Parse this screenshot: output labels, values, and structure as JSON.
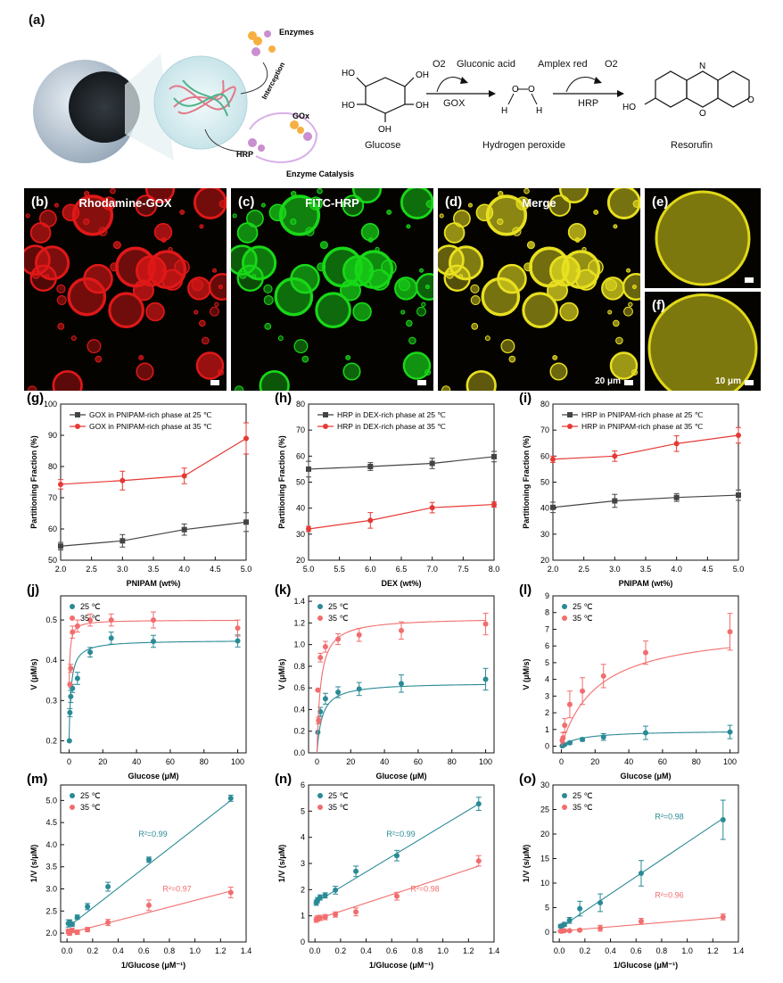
{
  "panel_a": {
    "letter": "(a)",
    "labels": {
      "enzymes": "Enzymes",
      "interception": "Interception",
      "gox": "GOx",
      "hrp": "HRP",
      "enzyme_catalysis": "Enzyme Catalysis"
    },
    "reaction": {
      "o2_1": "O2",
      "gluconic": "Gluconic acid",
      "gox": "GOX",
      "amplex": "Amplex red",
      "o2_2": "O2",
      "hrp": "HRP",
      "glucose": "Glucose",
      "h2o2": "Hydrogen peroxide",
      "resorufin": "Resorufin"
    }
  },
  "micrographs": [
    {
      "letter": "(b)",
      "label": "Rhodamine-GOX",
      "color": "#e01818",
      "scale": ""
    },
    {
      "letter": "(c)",
      "label": "FITC-HRP",
      "color": "#18d818",
      "scale": ""
    },
    {
      "letter": "(d)",
      "label": "Merge",
      "color": "#e8e020",
      "scale": "20 μm"
    },
    {
      "letter": "(e)",
      "label": "",
      "color": "#e0d818",
      "scale": ""
    },
    {
      "letter": "(f)",
      "label": "",
      "color": "#e0d818",
      "scale": "10 μm"
    }
  ],
  "chart_data": [
    {
      "id": "g",
      "type": "line",
      "letter": "(g)",
      "xlabel": "PNIPAM (wt%)",
      "ylabel": "Partitioning Fraction (%)",
      "xlim": [
        2.0,
        5.0
      ],
      "ylim": [
        50,
        100
      ],
      "xticks": [
        2.0,
        2.5,
        3.0,
        3.5,
        4.0,
        4.5,
        5.0
      ],
      "yticks": [
        50,
        60,
        70,
        80,
        90,
        100
      ],
      "xdec": 1,
      "ydec": 0,
      "series": [
        {
          "name": "GOX in PNIPAM-rich phase at 25 ℃",
          "color": "#444444",
          "marker": "square",
          "x": [
            2,
            3,
            4,
            5
          ],
          "y": [
            54.5,
            56.2,
            59.8,
            62.2
          ],
          "err": [
            1.2,
            2,
            1.8,
            3
          ]
        },
        {
          "name": "GOX in PNIPAM-rich phase at 35 ℃",
          "color": "#e53935",
          "marker": "circle",
          "x": [
            2,
            3,
            4,
            5
          ],
          "y": [
            74.3,
            75.5,
            77,
            89
          ],
          "err": [
            1.5,
            3,
            2.5,
            5
          ]
        }
      ]
    },
    {
      "id": "h",
      "type": "line",
      "letter": "(h)",
      "xlabel": "DEX (wt%)",
      "ylabel": "Partitioning Fraction (%)",
      "xlim": [
        5.0,
        8.0
      ],
      "ylim": [
        20,
        80
      ],
      "xticks": [
        5.0,
        5.5,
        6.0,
        6.5,
        7.0,
        7.5,
        8.0
      ],
      "yticks": [
        20,
        30,
        40,
        50,
        60,
        70,
        80
      ],
      "xdec": 1,
      "ydec": 0,
      "series": [
        {
          "name": "HRP in DEX-rich phase at 25 ℃",
          "color": "#444444",
          "marker": "square",
          "x": [
            5,
            6,
            7,
            8
          ],
          "y": [
            55,
            56,
            57.2,
            59.8
          ],
          "err": [
            3,
            1.5,
            2,
            2
          ]
        },
        {
          "name": "HRP in DEX-rich phase at 35 ℃",
          "color": "#e53935",
          "marker": "circle",
          "x": [
            5,
            6,
            7,
            8
          ],
          "y": [
            32,
            35.3,
            40.2,
            41.4
          ],
          "err": [
            1,
            3,
            2,
            1
          ]
        }
      ]
    },
    {
      "id": "i",
      "type": "line",
      "letter": "(i)",
      "xlabel": "PNIPAM (wt%)",
      "ylabel": "Partitioning Fraction (%)",
      "xlim": [
        2.0,
        5.0
      ],
      "ylim": [
        20,
        80
      ],
      "xticks": [
        2.0,
        2.5,
        3.0,
        3.5,
        4.0,
        4.5,
        5.0
      ],
      "yticks": [
        20,
        30,
        40,
        50,
        60,
        70,
        80
      ],
      "xdec": 1,
      "ydec": 0,
      "series": [
        {
          "name": "HRP in PNIPAM-rich phase at 25 ℃",
          "color": "#444444",
          "marker": "square",
          "x": [
            2,
            3,
            4,
            5
          ],
          "y": [
            40.3,
            42.8,
            44.1,
            45
          ],
          "err": [
            2,
            2.5,
            1.5,
            2
          ]
        },
        {
          "name": "HRP in PNIPAM-rich phase at 35 ℃",
          "color": "#e53935",
          "marker": "circle",
          "x": [
            2,
            3,
            4,
            5
          ],
          "y": [
            58.8,
            60,
            64.8,
            68
          ],
          "err": [
            1.2,
            2,
            3,
            3
          ]
        }
      ]
    },
    {
      "id": "j",
      "type": "scatter",
      "letter": "(j)",
      "xlabel": "Glucose (μM)",
      "ylabel": "V (μM/s)",
      "xlim": [
        -5,
        105
      ],
      "ylim": [
        0.17,
        0.56
      ],
      "xticks": [
        0,
        20,
        40,
        60,
        80,
        100
      ],
      "yticks": [
        0.2,
        0.3,
        0.4,
        0.5
      ],
      "xdec": 0,
      "ydec": 1,
      "fit": "mm",
      "series": [
        {
          "name": "25 ℃",
          "color": "#2a8a96",
          "x": [
            0.2,
            0.5,
            1,
            2,
            5,
            12.5,
            25,
            50,
            100
          ],
          "y": [
            0.2,
            0.27,
            0.31,
            0.33,
            0.355,
            0.42,
            0.455,
            0.447,
            0.448
          ],
          "err": [
            0,
            0.01,
            0.015,
            0.01,
            0.015,
            0.012,
            0.015,
            0.015,
            0.015
          ],
          "vmax": 0.45,
          "km": 1.15,
          "v0": 0.2
        },
        {
          "name": "35 ℃",
          "color": "#f26d6d",
          "x": [
            0.5,
            1,
            2,
            5,
            12.5,
            25,
            50,
            100
          ],
          "y": [
            0.34,
            0.38,
            0.47,
            0.485,
            0.5,
            0.5,
            0.5,
            0.48
          ],
          "err": [
            0,
            0.01,
            0.015,
            0.015,
            0.015,
            0.015,
            0.02,
            0.02
          ],
          "vmax": 0.5,
          "km": 0.6,
          "v0": 0.33
        }
      ]
    },
    {
      "id": "k",
      "type": "scatter",
      "letter": "(k)",
      "xlabel": "Glucose (μM)",
      "ylabel": "V (μM/s)",
      "xlim": [
        -5,
        105
      ],
      "ylim": [
        0,
        1.45
      ],
      "xticks": [
        0,
        20,
        40,
        60,
        80,
        100
      ],
      "yticks": [
        0.0,
        0.2,
        0.4,
        0.6,
        0.8,
        1.0,
        1.2,
        1.4
      ],
      "xdec": 0,
      "ydec": 1,
      "fit": "mm",
      "series": [
        {
          "name": "25 ℃",
          "color": "#2a8a96",
          "x": [
            0.5,
            1,
            2,
            5,
            12.5,
            25,
            50,
            100
          ],
          "y": [
            0.19,
            0.3,
            0.38,
            0.5,
            0.56,
            0.59,
            0.64,
            0.68
          ],
          "err": [
            0,
            0.03,
            0.04,
            0.05,
            0.05,
            0.06,
            0.08,
            0.1
          ],
          "vmax": 0.65,
          "km": 3,
          "v0": 0
        },
        {
          "name": "35 ℃",
          "color": "#f26d6d",
          "x": [
            0.5,
            1,
            2,
            5,
            12.5,
            25,
            50,
            100
          ],
          "y": [
            0.58,
            0.3,
            0.88,
            0.98,
            1.05,
            1.09,
            1.13,
            1.19
          ],
          "err": [
            0,
            0.03,
            0.04,
            0.05,
            0.05,
            0.06,
            0.08,
            0.1
          ],
          "vmax": 1.25,
          "km": 2.2,
          "v0": 0
        }
      ]
    },
    {
      "id": "l",
      "type": "scatter",
      "letter": "(l)",
      "xlabel": "Glucose (μM)",
      "ylabel": "V (μM/s)",
      "xlim": [
        -5,
        105
      ],
      "ylim": [
        -0.4,
        9
      ],
      "xticks": [
        0,
        20,
        40,
        60,
        80,
        100
      ],
      "yticks": [
        0,
        1,
        2,
        3,
        4,
        5,
        6,
        7,
        8,
        9
      ],
      "xdec": 0,
      "ydec": 0,
      "fit": "mm",
      "series": [
        {
          "name": "25 ℃",
          "color": "#2a8a96",
          "x": [
            0.5,
            1,
            2,
            5,
            12.5,
            25,
            50,
            100
          ],
          "y": [
            0.02,
            0.05,
            0.1,
            0.2,
            0.4,
            0.55,
            0.8,
            0.85
          ],
          "err": [
            0,
            0.05,
            0.05,
            0.08,
            0.1,
            0.2,
            0.4,
            0.4
          ],
          "vmax": 0.95,
          "km": 12,
          "v0": 0
        },
        {
          "name": "35 ℃",
          "color": "#f26d6d",
          "x": [
            0.5,
            1,
            2,
            5,
            12.5,
            25,
            50,
            100
          ],
          "y": [
            0.35,
            0.5,
            1.25,
            2.5,
            3.3,
            4.2,
            5.6,
            6.85
          ],
          "err": [
            0,
            0.3,
            0.4,
            0.8,
            0.8,
            0.7,
            0.7,
            1.1
          ],
          "vmax": 7.2,
          "km": 22,
          "v0": 0
        }
      ]
    },
    {
      "id": "m",
      "type": "scatter",
      "letter": "(m)",
      "xlabel": "1/Glucose (μM⁻¹)",
      "ylabel": "1/V (s/μM)",
      "xlim": [
        -0.05,
        1.4
      ],
      "ylim": [
        1.8,
        5.35
      ],
      "xticks": [
        0.0,
        0.2,
        0.4,
        0.6,
        0.8,
        1.0,
        1.2,
        1.4
      ],
      "yticks": [
        2.0,
        2.5,
        3.0,
        3.5,
        4.0,
        4.5,
        5.0
      ],
      "xdec": 1,
      "ydec": 1,
      "fit": "linear",
      "r2": [
        {
          "text": "R²=0.99",
          "color": "#2a8a96"
        },
        {
          "text": "R²=0.97",
          "color": "#f26d6d"
        }
      ],
      "series": [
        {
          "name": "25 ℃",
          "color": "#2a8a96",
          "x": [
            0.01,
            0.02,
            0.04,
            0.08,
            0.16,
            0.32,
            0.64,
            1.28
          ],
          "y": [
            2.22,
            2.25,
            2.2,
            2.36,
            2.6,
            3.05,
            3.66,
            5.05
          ],
          "err": [
            0.08,
            0.05,
            0.05,
            0.05,
            0.07,
            0.1,
            0.06,
            0.07
          ],
          "slope": 2.25,
          "intercept": 2.12
        },
        {
          "name": "35 ℃",
          "color": "#f26d6d",
          "x": [
            0.01,
            0.02,
            0.04,
            0.08,
            0.16,
            0.32,
            0.64,
            1.28
          ],
          "y": [
            2.04,
            2.0,
            2.06,
            2.02,
            2.08,
            2.24,
            2.63,
            2.92
          ],
          "err": [
            0.05,
            0.05,
            0.05,
            0.05,
            0.05,
            0.07,
            0.12,
            0.12
          ],
          "slope": 0.75,
          "intercept": 1.99
        }
      ]
    },
    {
      "id": "n",
      "type": "scatter",
      "letter": "(n)",
      "xlabel": "1/Glucose (μM⁻¹)",
      "ylabel": "1/V (s/μM)",
      "xlim": [
        -0.05,
        1.4
      ],
      "ylim": [
        0,
        6
      ],
      "xticks": [
        0.0,
        0.2,
        0.4,
        0.6,
        0.8,
        1.0,
        1.2,
        1.4
      ],
      "yticks": [
        0,
        1,
        2,
        3,
        4,
        5,
        6
      ],
      "xdec": 1,
      "ydec": 0,
      "fit": "linear",
      "r2": [
        {
          "text": "R²=0.99",
          "color": "#2a8a96"
        },
        {
          "text": "R²=0.98",
          "color": "#f26d6d"
        }
      ],
      "series": [
        {
          "name": "25 ℃",
          "color": "#2a8a96",
          "x": [
            0.01,
            0.02,
            0.04,
            0.08,
            0.16,
            0.32,
            0.64,
            1.28
          ],
          "y": [
            1.5,
            1.6,
            1.7,
            1.78,
            1.98,
            2.7,
            3.3,
            5.28
          ],
          "err": [
            0.1,
            0.1,
            0.1,
            0.1,
            0.15,
            0.2,
            0.2,
            0.25
          ],
          "slope": 2.95,
          "intercept": 1.5
        },
        {
          "name": "35 ℃",
          "color": "#f26d6d",
          "x": [
            0.01,
            0.02,
            0.04,
            0.08,
            0.16,
            0.32,
            0.64,
            1.28
          ],
          "y": [
            0.85,
            0.9,
            0.92,
            0.95,
            1.05,
            1.15,
            1.75,
            3.1
          ],
          "err": [
            0.1,
            0.1,
            0.1,
            0.1,
            0.1,
            0.15,
            0.15,
            0.2
          ],
          "slope": 1.6,
          "intercept": 0.85
        }
      ]
    },
    {
      "id": "o",
      "type": "scatter",
      "letter": "(o)",
      "xlabel": "1/Glucose (μM⁻¹)",
      "ylabel": "1/V (s/μM)",
      "xlim": [
        -0.05,
        1.4
      ],
      "ylim": [
        -2,
        30
      ],
      "xticks": [
        0.0,
        0.2,
        0.4,
        0.6,
        0.8,
        1.0,
        1.2,
        1.4
      ],
      "yticks": [
        0,
        5,
        10,
        15,
        20,
        25,
        30
      ],
      "xdec": 1,
      "ydec": 0,
      "fit": "linear",
      "r2": [
        {
          "text": "R²=0.98",
          "color": "#2a8a96"
        },
        {
          "text": "R²=0.96",
          "color": "#f26d6d"
        }
      ],
      "series": [
        {
          "name": "25 ℃",
          "color": "#2a8a96",
          "x": [
            0.01,
            0.02,
            0.04,
            0.08,
            0.16,
            0.32,
            0.64,
            1.28
          ],
          "y": [
            1.2,
            1.3,
            1.6,
            2.4,
            4.8,
            6.0,
            12.0,
            22.9
          ],
          "err": [
            0.3,
            0.3,
            0.4,
            0.6,
            1.5,
            1.8,
            2.6,
            4
          ],
          "slope": 17.5,
          "intercept": 0.8
        },
        {
          "name": "35 ℃",
          "color": "#f26d6d",
          "x": [
            0.01,
            0.02,
            0.04,
            0.08,
            0.16,
            0.32,
            0.64,
            1.28
          ],
          "y": [
            0.2,
            0.2,
            0.3,
            0.3,
            0.4,
            0.8,
            2.2,
            3.1
          ],
          "err": [
            0.1,
            0.1,
            0.1,
            0.1,
            0.2,
            0.6,
            0.6,
            0.6
          ],
          "slope": 2.2,
          "intercept": 0.2
        }
      ]
    }
  ]
}
